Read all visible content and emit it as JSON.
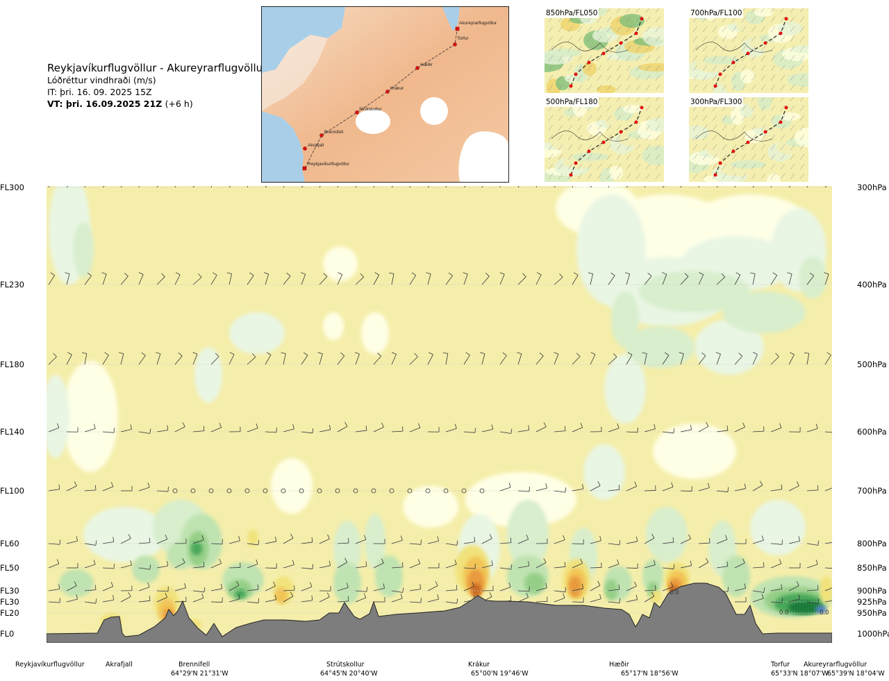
{
  "header": {
    "route": "Reykjavíkurflugvöllur - Akureyrarflugvöllur",
    "variable": "Lóðréttur vindhraði (m/s)",
    "issue_time": "IT: þri. 16. 09. 2025 15Z",
    "valid_time": "VT: þri. 16.09.2025 21Z",
    "lead_time": "(+6 h)"
  },
  "map": {
    "waypoints": [
      "Akureyrarflugvöllur",
      "Torfur",
      "Hæðir",
      "Krákur",
      "Strútskollur",
      "Brennifell",
      "Akrafjall",
      "Reykjavíkurflugvöllur"
    ]
  },
  "panels": [
    {
      "label": "850hPa/FL050"
    },
    {
      "label": "700hPa/FL100"
    },
    {
      "label": "500hPa/FL180"
    },
    {
      "label": "300hPa/FL300"
    }
  ],
  "chart_data": {
    "type": "heatmap",
    "title": "Lóðréttur vindhraði (m/s)",
    "y_left_ticks": [
      "FL300",
      "FL230",
      "FL180",
      "FL140",
      "FL100",
      "FL60",
      "FL50",
      "FL30",
      "FL30",
      "FL20",
      "FL0"
    ],
    "y_right_ticks": [
      "300hPa",
      "400hPa",
      "500hPa",
      "600hPa",
      "700hPa",
      "800hPa",
      "850hPa",
      "900hPa",
      "925hPa",
      "950hPa",
      "1000hPa"
    ],
    "pressure_levels_hPa": [
      300,
      400,
      500,
      600,
      700,
      800,
      850,
      900,
      925,
      950,
      1000
    ],
    "x_waypoints": [
      {
        "name": "Reykjavíkurflugvöllur",
        "coord": ""
      },
      {
        "name": "Akrafjall",
        "coord": ""
      },
      {
        "name": "Brennifell",
        "coord": "64°29'N 21°31'W"
      },
      {
        "name": "Strútskollur",
        "coord": "64°45'N 20°40'W"
      },
      {
        "name": "Krákur",
        "coord": "65°00'N 19°46'W"
      },
      {
        "name": "Hæðir",
        "coord": "65°17'N 18°56'W"
      },
      {
        "name": "Torfur",
        "coord": "65°33'N 18°07'W"
      },
      {
        "name": "Akureyrarflugvöllur",
        "coord": "65°39'N 18°04'W"
      }
    ],
    "data_labels": [
      "0.0",
      "0.0",
      "0.0"
    ]
  }
}
